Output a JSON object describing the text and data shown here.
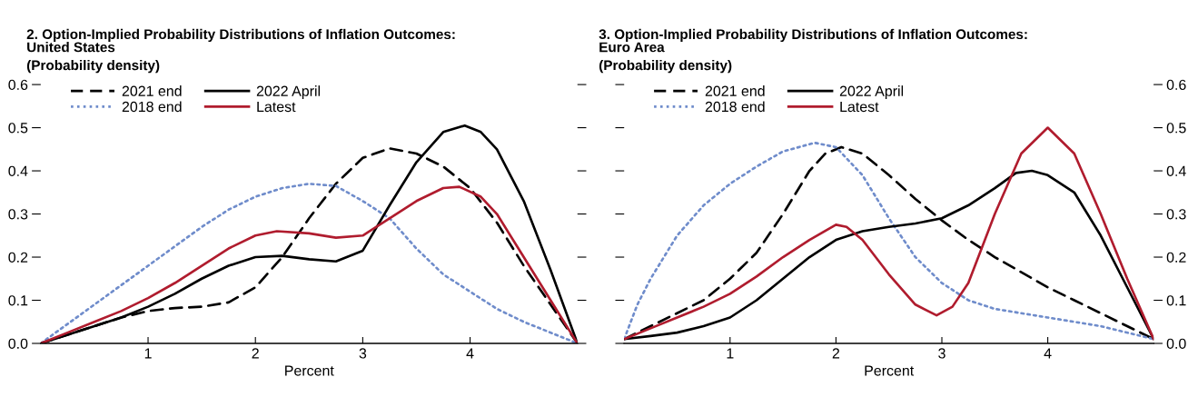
{
  "chart_data": [
    {
      "type": "line",
      "title": "2. Option-Implied Probability Distributions of Inflation Outcomes:\nUnited States",
      "subtitle": "(Probability density)",
      "xlabel": "Percent",
      "xlim": [
        0,
        5
      ],
      "xticks": [
        1,
        2,
        3,
        4
      ],
      "ylim": [
        0,
        0.6
      ],
      "yticks": [
        {
          "value": 0,
          "label": "0.0"
        },
        0.1,
        0.2,
        0.3,
        0.4,
        0.5,
        0.6
      ],
      "legend": "top left",
      "grid": false,
      "marker": "none",
      "series": [
        {
          "name": "2021 end",
          "color": "#000000",
          "line_style": "dashed",
          "x": [
            0,
            0.25,
            0.5,
            0.75,
            1,
            1.25,
            1.5,
            1.75,
            2,
            2.25,
            2.5,
            2.75,
            3,
            3.25,
            3.5,
            3.75,
            4,
            4.25,
            4.5,
            4.75,
            5
          ],
          "values": [
            0,
            0.02,
            0.04,
            0.06,
            0.075,
            0.082,
            0.085,
            0.095,
            0.13,
            0.2,
            0.29,
            0.37,
            0.43,
            0.452,
            0.44,
            0.41,
            0.36,
            0.28,
            0.18,
            0.09,
            0
          ]
        },
        {
          "name": "2018 end",
          "color": "#6f8ccb",
          "line_style": "dotted",
          "x": [
            0,
            0.25,
            0.5,
            0.75,
            1,
            1.25,
            1.5,
            1.75,
            2,
            2.25,
            2.5,
            2.75,
            3,
            3.25,
            3.5,
            3.75,
            4,
            4.25,
            4.5,
            4.75,
            5
          ],
          "values": [
            0,
            0.045,
            0.09,
            0.135,
            0.18,
            0.225,
            0.27,
            0.31,
            0.34,
            0.36,
            0.37,
            0.365,
            0.33,
            0.29,
            0.22,
            0.16,
            0.12,
            0.08,
            0.05,
            0.025,
            0
          ]
        },
        {
          "name": "2022 April",
          "color": "#000000",
          "line_style": "solid",
          "x": [
            0,
            0.25,
            0.5,
            0.75,
            1,
            1.25,
            1.5,
            1.75,
            2,
            2.25,
            2.5,
            2.75,
            3,
            3.25,
            3.5,
            3.75,
            3.95,
            4.1,
            4.25,
            4.5,
            4.75,
            5
          ],
          "values": [
            0,
            0.02,
            0.04,
            0.06,
            0.085,
            0.115,
            0.15,
            0.18,
            0.2,
            0.203,
            0.195,
            0.19,
            0.215,
            0.32,
            0.42,
            0.49,
            0.505,
            0.49,
            0.45,
            0.33,
            0.17,
            0
          ]
        },
        {
          "name": "Latest",
          "color": "#b01c2e",
          "line_style": "solid",
          "x": [
            0,
            0.25,
            0.5,
            0.75,
            1,
            1.25,
            1.5,
            1.75,
            2,
            2.2,
            2.5,
            2.75,
            3,
            3.25,
            3.5,
            3.75,
            3.9,
            4.1,
            4.25,
            4.5,
            4.75,
            5
          ],
          "values": [
            0,
            0.025,
            0.05,
            0.075,
            0.105,
            0.14,
            0.18,
            0.22,
            0.25,
            0.26,
            0.255,
            0.245,
            0.25,
            0.29,
            0.33,
            0.36,
            0.363,
            0.34,
            0.3,
            0.2,
            0.1,
            0
          ]
        }
      ]
    },
    {
      "type": "line",
      "title": "3. Option-Implied Probability Distributions of Inflation Outcomes:\nEuro Area",
      "subtitle": "(Probability density)",
      "xlabel": "Percent",
      "xlim": [
        0,
        5
      ],
      "xticks": [
        1,
        2,
        3,
        4
      ],
      "y2lim": [
        0,
        0.6
      ],
      "y2ticks": [
        {
          "value": 0,
          "label": "0.0"
        },
        0.1,
        0.2,
        0.3,
        0.4,
        0.5,
        0.6
      ],
      "legend": "top left",
      "grid": false,
      "marker": "none",
      "series": [
        {
          "name": "2021 end",
          "color": "#000000",
          "line_style": "dashed",
          "axis": "y2",
          "x": [
            0,
            0.25,
            0.5,
            0.75,
            1,
            1.25,
            1.5,
            1.75,
            1.9,
            2.05,
            2.25,
            2.5,
            2.75,
            3,
            3.25,
            3.5,
            3.75,
            4,
            4.25,
            4.5,
            4.75,
            5
          ],
          "values": [
            0.01,
            0.04,
            0.07,
            0.1,
            0.15,
            0.21,
            0.3,
            0.4,
            0.44,
            0.455,
            0.44,
            0.39,
            0.335,
            0.285,
            0.24,
            0.2,
            0.165,
            0.13,
            0.1,
            0.07,
            0.04,
            0.01
          ]
        },
        {
          "name": "2018 end",
          "color": "#6f8ccb",
          "line_style": "dotted",
          "axis": "y2",
          "x": [
            0,
            0.125,
            0.25,
            0.5,
            0.75,
            1,
            1.25,
            1.5,
            1.8,
            2,
            2.25,
            2.5,
            2.75,
            3,
            3.25,
            3.5,
            3.75,
            4,
            4.5,
            5
          ],
          "values": [
            0.01,
            0.09,
            0.15,
            0.25,
            0.32,
            0.37,
            0.41,
            0.445,
            0.465,
            0.455,
            0.39,
            0.29,
            0.2,
            0.14,
            0.1,
            0.08,
            0.07,
            0.06,
            0.04,
            0.01
          ]
        },
        {
          "name": "2022 April",
          "color": "#000000",
          "line_style": "solid",
          "axis": "y2",
          "x": [
            0,
            0.25,
            0.5,
            0.75,
            1,
            1.25,
            1.5,
            1.75,
            2,
            2.25,
            2.5,
            2.75,
            3,
            3.25,
            3.5,
            3.7,
            3.85,
            4,
            4.25,
            4.5,
            4.75,
            5
          ],
          "values": [
            0.01,
            0.017,
            0.025,
            0.04,
            0.06,
            0.1,
            0.15,
            0.2,
            0.24,
            0.26,
            0.27,
            0.278,
            0.29,
            0.32,
            0.36,
            0.395,
            0.4,
            0.39,
            0.35,
            0.25,
            0.13,
            0.01
          ]
        },
        {
          "name": "Latest",
          "color": "#b01c2e",
          "line_style": "solid",
          "axis": "y2",
          "x": [
            0,
            0.25,
            0.5,
            0.75,
            1,
            1.25,
            1.5,
            1.75,
            2,
            2.1,
            2.25,
            2.5,
            2.75,
            2.95,
            3.1,
            3.25,
            3.5,
            3.75,
            4,
            4.25,
            4.5,
            4.75,
            5
          ],
          "values": [
            0.01,
            0.035,
            0.06,
            0.085,
            0.115,
            0.155,
            0.2,
            0.24,
            0.275,
            0.27,
            0.24,
            0.16,
            0.09,
            0.065,
            0.085,
            0.14,
            0.3,
            0.44,
            0.5,
            0.44,
            0.3,
            0.15,
            0.01
          ]
        }
      ]
    }
  ]
}
